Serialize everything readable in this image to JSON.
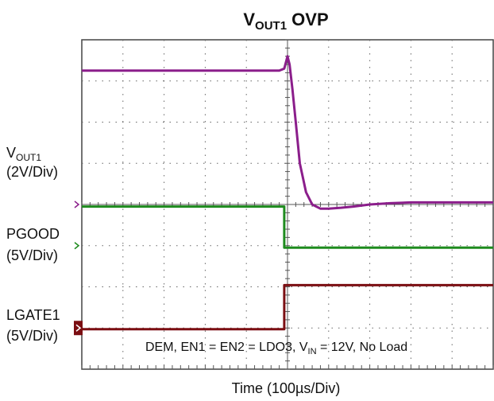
{
  "title": {
    "main": "V",
    "sub": "OUT1",
    "rest": " OVP"
  },
  "x_axis_label": "Time  (100µs/Div)",
  "annotation": {
    "pre": "DEM, EN1 = EN2 = LDO3, V",
    "sub": "IN",
    "post": " = 12V, No Load"
  },
  "channels": [
    {
      "name": "VOUT1",
      "label_main": "V",
      "label_sub": "OUT1",
      "scale": "(2V/Div)",
      "color": "#8b1e8b"
    },
    {
      "name": "PGOOD",
      "label_main": "PGOOD",
      "label_sub": "",
      "scale": "(5V/Div)",
      "color": "#1e8b1e"
    },
    {
      "name": "LGATE1",
      "label_main": "LGATE1",
      "label_sub": "",
      "scale": "(5V/Div)",
      "color": "#7b0e12"
    }
  ],
  "chart_data": {
    "type": "line",
    "title": "VOUT1 OVP",
    "xlabel": "Time  (100µs/Div)",
    "x_divisions": 10,
    "y_divisions": 8,
    "grid": true,
    "series": [
      {
        "name": "VOUT1",
        "color": "#8b1e8b",
        "x": [
          0,
          4.8,
          4.92,
          5.0,
          5.05,
          5.12,
          5.2,
          5.3,
          5.45,
          5.6,
          5.8,
          6.0,
          6.3,
          6.6,
          7.0,
          7.5,
          8.0,
          9.0,
          10
        ],
        "y": [
          7.25,
          7.25,
          7.3,
          7.6,
          7.4,
          6.8,
          6.0,
          5.0,
          4.3,
          4.0,
          3.9,
          3.9,
          3.92,
          3.95,
          4.0,
          4.03,
          4.05,
          4.05,
          4.05
        ]
      },
      {
        "name": "PGOOD",
        "color": "#1e8b1e",
        "x": [
          0,
          4.92,
          4.92,
          10
        ],
        "y": [
          3.95,
          3.95,
          2.95,
          2.95
        ]
      },
      {
        "name": "LGATE1",
        "color": "#7b0e12",
        "x": [
          0,
          4.92,
          4.92,
          10
        ],
        "y": [
          0.97,
          0.97,
          2.04,
          2.04
        ]
      }
    ]
  }
}
